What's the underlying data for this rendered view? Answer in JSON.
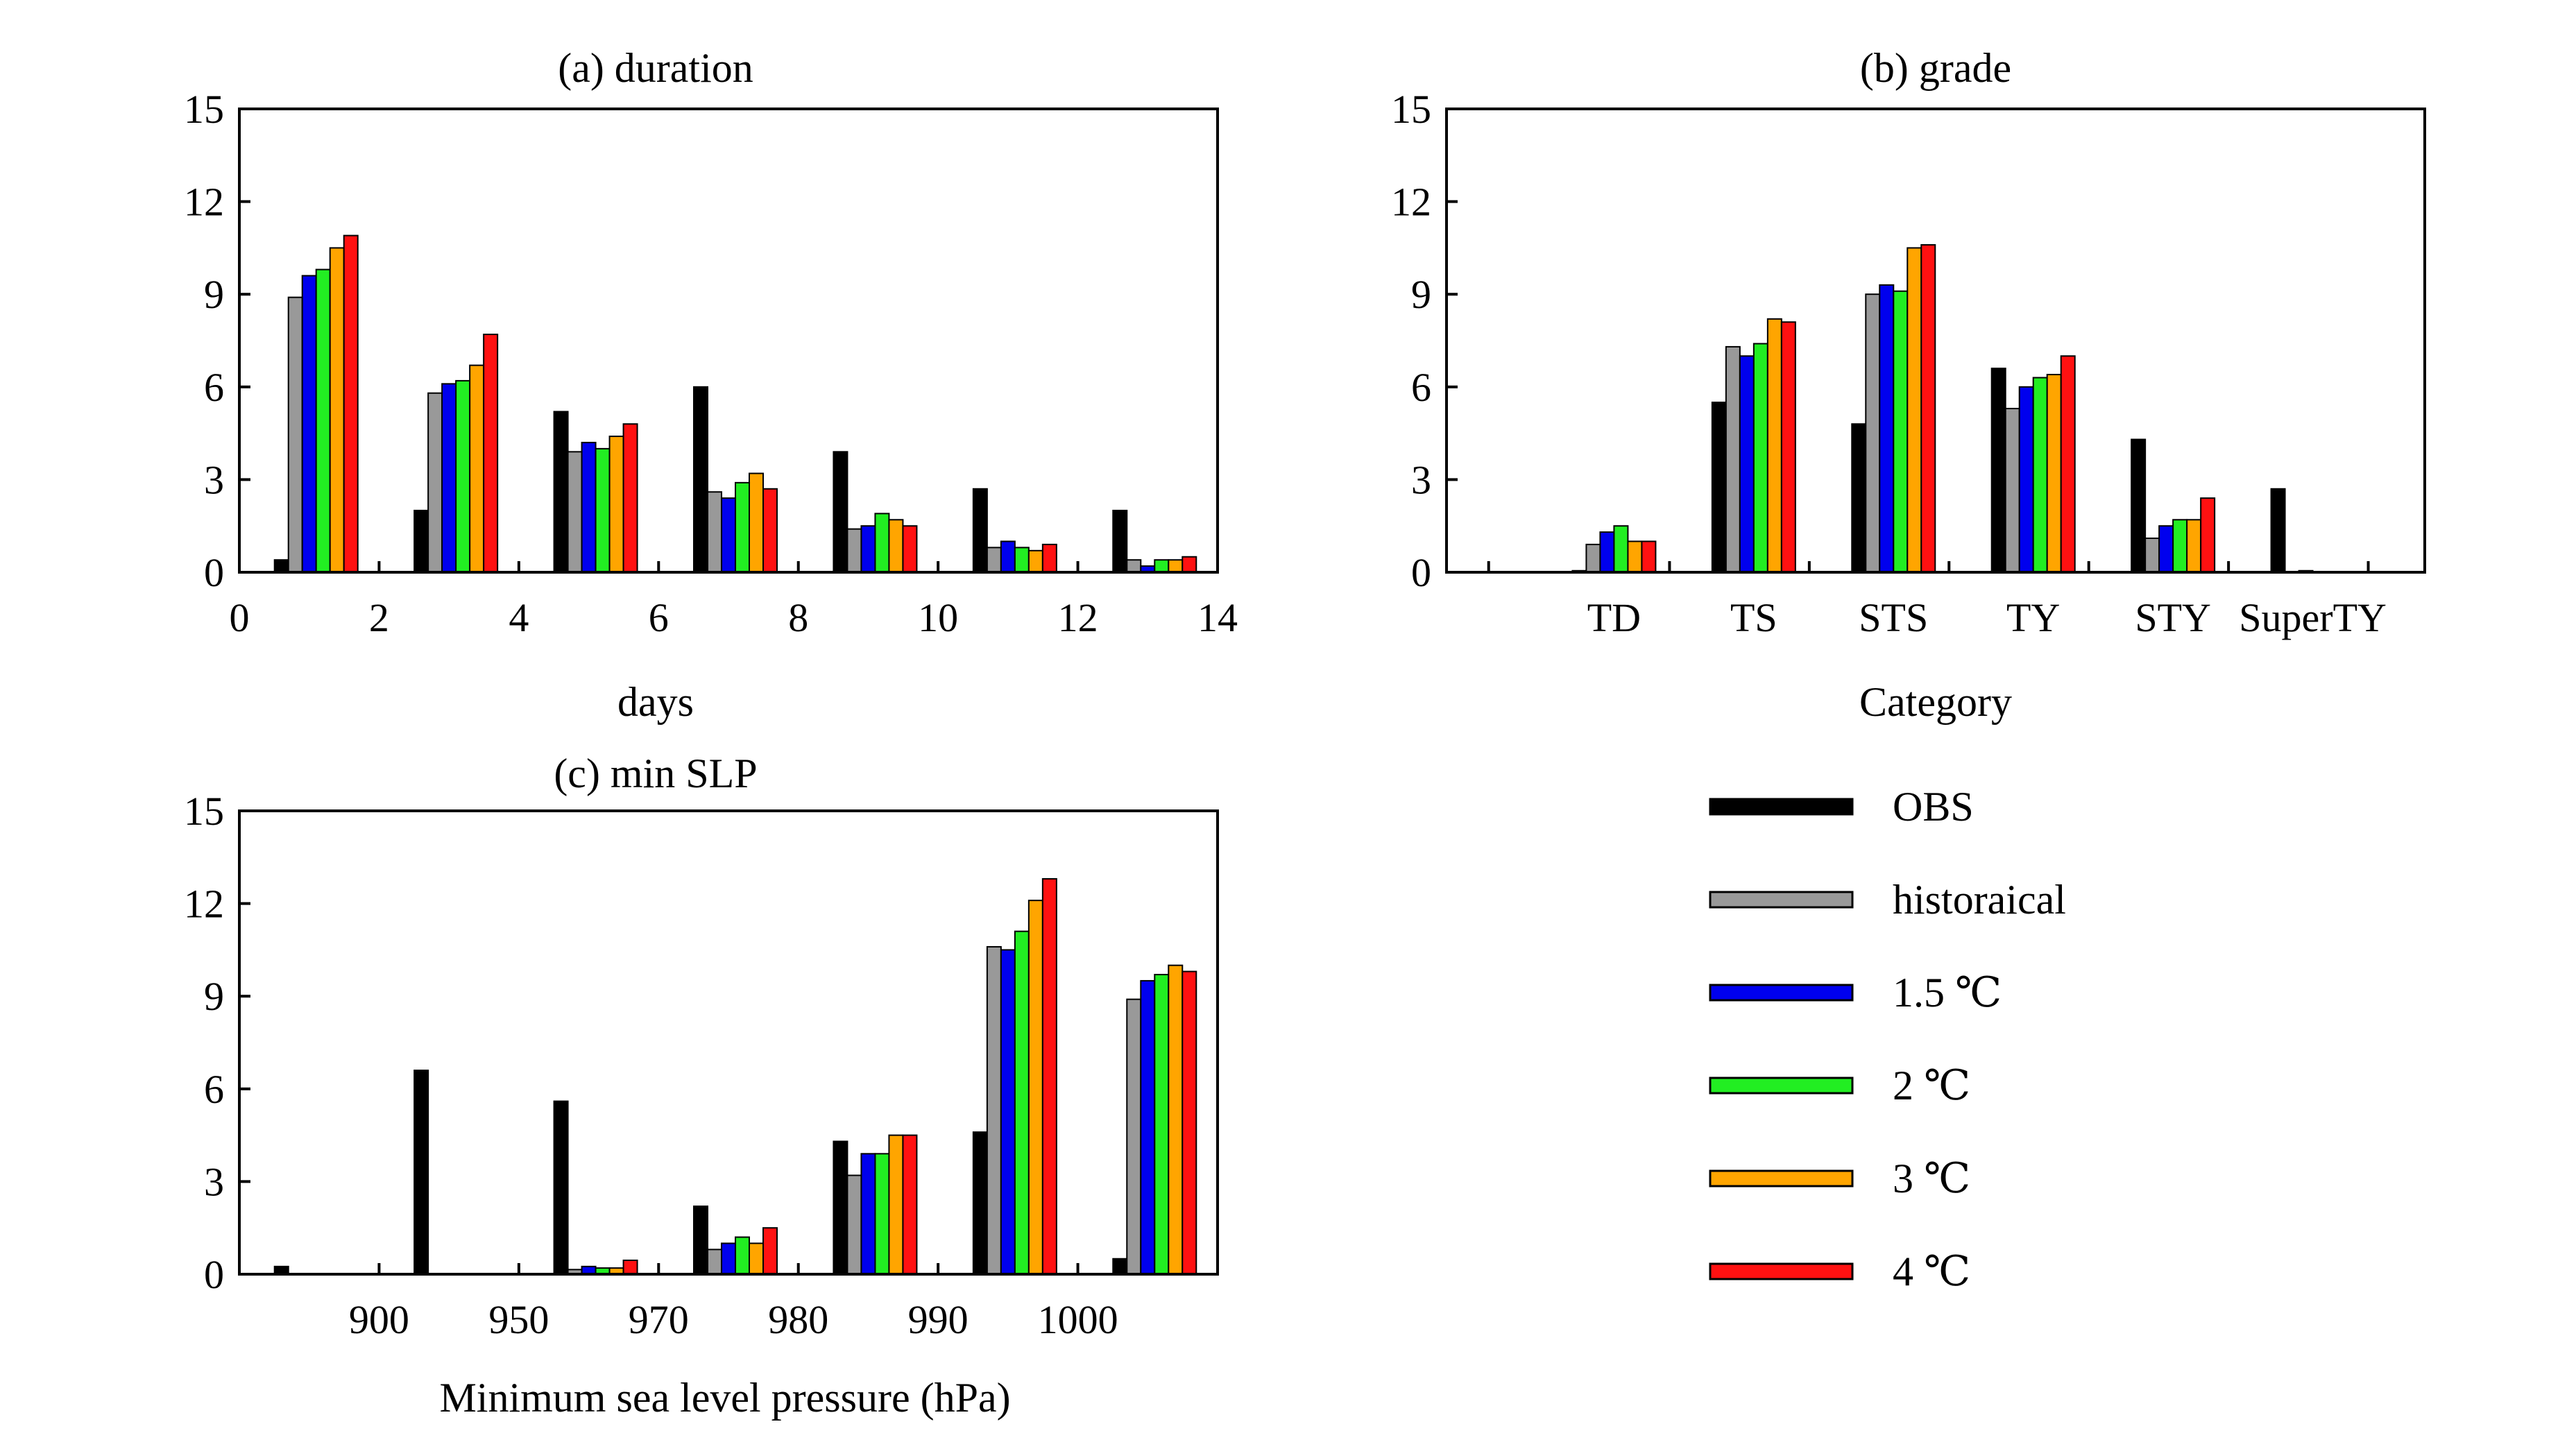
{
  "series_styles": [
    {
      "name": "OBS",
      "color": "#000000"
    },
    {
      "name": "historaical",
      "color": "#999999"
    },
    {
      "name": "1.5 ℃",
      "color": "#0000ee"
    },
    {
      "name": "2 ℃",
      "color": "#22ee22"
    },
    {
      "name": "3 ℃",
      "color": "#ffa500"
    },
    {
      "name": "4 ℃",
      "color": "#ff1111"
    }
  ],
  "chart_data": [
    {
      "type": "bar",
      "title": "(a) duration",
      "xlabel": "days",
      "ylabel": "",
      "ylim": [
        0,
        15
      ],
      "xlim": [
        0,
        14
      ],
      "yticks": [
        "0",
        "3",
        "6",
        "9",
        "12",
        "15"
      ],
      "xticks": [
        "0",
        "2",
        "4",
        "6",
        "8",
        "10",
        "12",
        "14"
      ],
      "x": [
        1,
        3,
        5,
        7,
        9,
        11,
        13
      ],
      "series": [
        {
          "name": "OBS",
          "values": [
            0.4,
            2.0,
            5.2,
            6.0,
            3.9,
            2.7,
            2.0
          ]
        },
        {
          "name": "historaical",
          "values": [
            8.9,
            5.8,
            3.9,
            2.6,
            1.4,
            0.8,
            0.4
          ]
        },
        {
          "name": "1.5 ℃",
          "values": [
            9.6,
            6.1,
            4.2,
            2.4,
            1.5,
            1.0,
            0.2
          ]
        },
        {
          "name": "2 ℃",
          "values": [
            9.8,
            6.2,
            4.0,
            2.9,
            1.9,
            0.8,
            0.4
          ]
        },
        {
          "name": "3 ℃",
          "values": [
            10.5,
            6.7,
            4.4,
            3.2,
            1.7,
            0.7,
            0.4
          ]
        },
        {
          "name": "4 ℃",
          "values": [
            10.9,
            7.7,
            4.8,
            2.7,
            1.5,
            0.9,
            0.5
          ]
        }
      ]
    },
    {
      "type": "bar",
      "title": "(b) grade",
      "xlabel": "Category",
      "ylabel": "",
      "ylim": [
        0,
        15
      ],
      "yticks": [
        "0",
        "3",
        "6",
        "9",
        "12",
        "15"
      ],
      "categories": [
        "TD",
        "TS",
        "STS",
        "TY",
        "STY",
        "SuperTY"
      ],
      "series": [
        {
          "name": "OBS",
          "values": [
            0.05,
            5.5,
            4.8,
            6.6,
            4.3,
            2.7
          ]
        },
        {
          "name": "historaical",
          "values": [
            0.9,
            7.3,
            9.0,
            5.3,
            1.1,
            0.0
          ]
        },
        {
          "name": "1.5 ℃",
          "values": [
            1.3,
            7.0,
            9.3,
            6.0,
            1.5,
            0.05
          ]
        },
        {
          "name": "2 ℃",
          "values": [
            1.5,
            7.4,
            9.1,
            6.3,
            1.7,
            0.0
          ]
        },
        {
          "name": "3 ℃",
          "values": [
            1.0,
            8.2,
            10.5,
            6.4,
            1.7,
            0.0
          ]
        },
        {
          "name": "4 ℃",
          "values": [
            1.0,
            8.1,
            10.6,
            7.0,
            2.4,
            0.0
          ]
        }
      ]
    },
    {
      "type": "bar",
      "title": "(c) min SLP",
      "xlabel": "Minimum sea level pressure (hPa)",
      "ylabel": "",
      "ylim": [
        0,
        15
      ],
      "yticks": [
        "0",
        "3",
        "6",
        "9",
        "12",
        "15"
      ],
      "xticks": [
        "900",
        "950",
        "970",
        "980",
        "990",
        "1000"
      ],
      "series": [
        {
          "name": "OBS",
          "values": [
            0.25,
            6.6,
            5.6,
            2.2,
            4.3,
            4.6,
            0.5
          ]
        },
        {
          "name": "historaical",
          "values": [
            0.0,
            0.0,
            0.15,
            0.8,
            3.2,
            10.6,
            8.9
          ]
        },
        {
          "name": "1.5 ℃",
          "values": [
            0.0,
            0.0,
            0.25,
            1.0,
            3.9,
            10.5,
            9.5
          ]
        },
        {
          "name": "2 ℃",
          "values": [
            0.0,
            0.0,
            0.2,
            1.2,
            3.9,
            11.1,
            9.7
          ]
        },
        {
          "name": "3 ℃",
          "values": [
            0.0,
            0.0,
            0.2,
            1.0,
            4.5,
            12.1,
            10.0
          ]
        },
        {
          "name": "4 ℃",
          "values": [
            0.0,
            0.0,
            0.45,
            1.5,
            4.5,
            12.8,
            9.8
          ]
        }
      ]
    }
  ]
}
